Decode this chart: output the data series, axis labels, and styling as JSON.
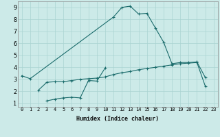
{
  "xlabel": "Humidex (Indice chaleur)",
  "bg_color": "#cceae8",
  "grid_color": "#aad4d2",
  "line_color": "#1a6b6b",
  "xlim": [
    -0.5,
    23.5
  ],
  "ylim": [
    0.7,
    9.5
  ],
  "xticks": [
    0,
    1,
    2,
    3,
    4,
    5,
    6,
    7,
    8,
    9,
    10,
    11,
    12,
    13,
    14,
    15,
    16,
    17,
    18,
    19,
    20,
    21,
    22,
    23
  ],
  "yticks": [
    1,
    2,
    3,
    4,
    5,
    6,
    7,
    8,
    9
  ],
  "line1_x": [
    0,
    1,
    11,
    12,
    13,
    14,
    15,
    16,
    17,
    18,
    19,
    20,
    21,
    22
  ],
  "line1_y": [
    3.3,
    3.05,
    8.2,
    9.0,
    9.1,
    8.45,
    8.5,
    7.3,
    6.1,
    4.3,
    4.4,
    4.4,
    4.45,
    3.15
  ],
  "line2_x": [
    3,
    4,
    5,
    6,
    7,
    8,
    9,
    10
  ],
  "line2_y": [
    1.2,
    1.35,
    1.45,
    1.5,
    1.45,
    2.9,
    2.85,
    3.95
  ],
  "line3_x": [
    2,
    3,
    4,
    5,
    6,
    7,
    8,
    9,
    10,
    11,
    12,
    13,
    14,
    15,
    16,
    17,
    18,
    19,
    20,
    21,
    22
  ],
  "line3_y": [
    2.1,
    2.75,
    2.8,
    2.8,
    2.9,
    3.0,
    3.05,
    3.1,
    3.2,
    3.4,
    3.55,
    3.65,
    3.8,
    3.9,
    4.0,
    4.1,
    4.2,
    4.3,
    4.35,
    4.4,
    2.42
  ]
}
